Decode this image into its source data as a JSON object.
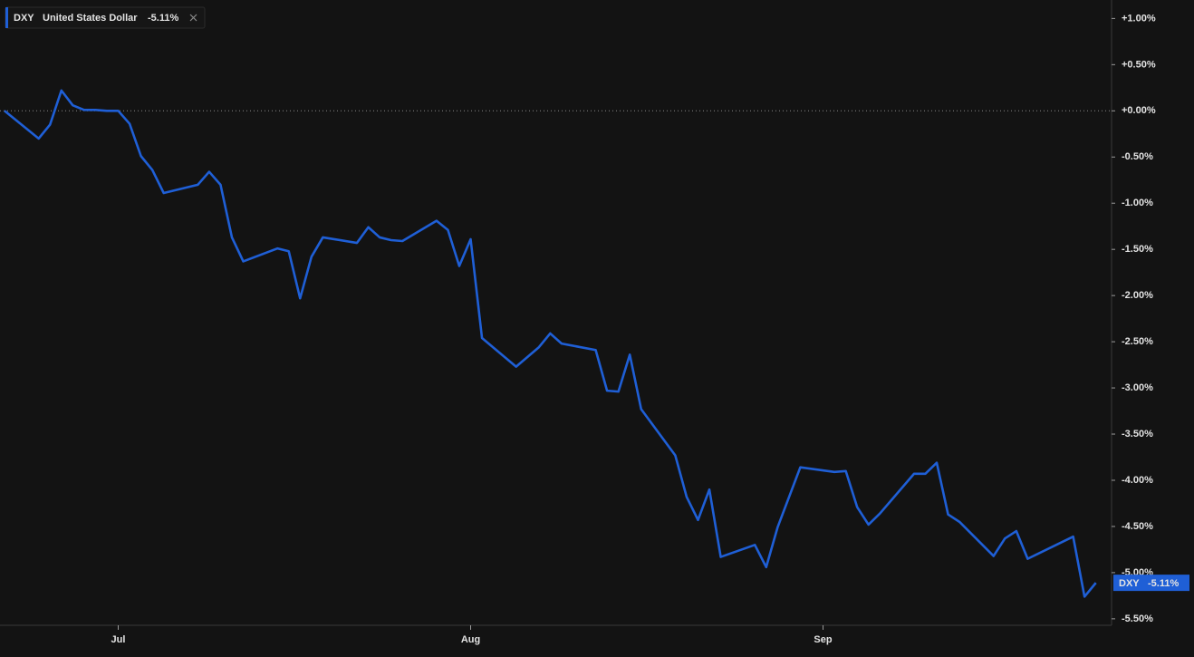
{
  "chart_data": {
    "type": "line",
    "x": [
      0,
      3,
      4,
      5,
      6,
      7,
      8,
      9,
      10,
      11,
      12,
      13,
      14,
      17,
      18,
      19,
      20,
      21,
      24,
      25,
      26,
      27,
      28,
      31,
      32,
      33,
      34,
      35,
      38,
      39,
      40,
      41,
      42,
      45,
      47,
      48,
      49,
      52,
      53,
      54,
      55,
      56,
      59,
      60,
      61,
      62,
      63,
      66,
      67,
      68,
      70,
      73,
      74,
      75,
      76,
      77,
      80,
      81,
      82,
      83,
      84,
      87,
      88,
      89,
      90,
      94,
      95,
      96
    ],
    "series": [
      {
        "symbol": "DXY",
        "name": "United States Dollar",
        "color": "#1f5fd6",
        "values": [
          0,
          -0.3,
          -0.15,
          0.22,
          0.06,
          0.01,
          0.01,
          0.0,
          0.0,
          -0.14,
          -0.49,
          -0.64,
          -0.89,
          -0.8,
          -0.66,
          -0.8,
          -1.37,
          -1.63,
          -1.49,
          -1.52,
          -2.03,
          -1.58,
          -1.37,
          -1.43,
          -1.26,
          -1.37,
          -1.4,
          -1.41,
          -1.19,
          -1.29,
          -1.68,
          -1.39,
          -2.46,
          -2.77,
          -2.56,
          -2.41,
          -2.52,
          -2.59,
          -3.03,
          -3.04,
          -2.64,
          -3.23,
          -3.73,
          -4.18,
          -4.43,
          -4.1,
          -4.83,
          -4.7,
          -4.94,
          -4.51,
          -3.86,
          -3.91,
          -3.9,
          -4.29,
          -4.48,
          -4.36,
          -3.93,
          -3.93,
          -3.81,
          -4.37,
          -4.45,
          -4.82,
          -4.63,
          -4.55,
          -4.85,
          -4.61,
          -5.26,
          -5.11
        ],
        "value_labels": [
          null,
          null,
          null,
          null,
          null,
          null,
          null,
          null,
          null,
          null,
          null,
          null,
          null,
          null,
          null,
          null,
          null,
          null,
          null,
          null,
          null,
          null,
          null,
          null,
          null,
          null,
          null,
          null,
          null,
          null,
          null,
          null,
          null,
          null,
          null,
          null,
          null,
          null,
          null,
          null,
          null,
          null,
          null,
          null,
          null,
          null,
          null,
          null,
          null,
          null,
          null,
          null,
          null,
          null,
          null,
          null,
          null,
          null,
          null,
          null,
          null,
          null,
          null,
          null,
          null,
          null,
          null,
          "-5.11%"
        ]
      }
    ],
    "xlim": [
      -0.4,
      97.3
    ],
    "xticks": [
      {
        "value": 10,
        "label": "Jul"
      },
      {
        "value": 41,
        "label": "Aug"
      },
      {
        "value": 72,
        "label": "Sep"
      }
    ],
    "ylim": [
      -5.57,
      1.2
    ],
    "yticks": [
      {
        "value": 1,
        "label": "+1.00%"
      },
      {
        "value": 0.5,
        "label": "+0.50%"
      },
      {
        "value": 0,
        "label": "+0.00%"
      },
      {
        "value": -0.5,
        "label": "-0.50%"
      },
      {
        "value": -1,
        "label": "-1.00%"
      },
      {
        "value": -1.5,
        "label": "-1.50%"
      },
      {
        "value": -2,
        "label": "-2.00%"
      },
      {
        "value": -2.5,
        "label": "-2.50%"
      },
      {
        "value": -3,
        "label": "-3.00%"
      },
      {
        "value": -3.5,
        "label": "-3.50%"
      },
      {
        "value": -4,
        "label": "-4.00%"
      },
      {
        "value": -4.5,
        "label": "-4.50%"
      },
      {
        "value": -5,
        "label": "-5.00%"
      },
      {
        "value": -5.5,
        "label": "-5.50%"
      }
    ],
    "reference_line": 0
  }
}
